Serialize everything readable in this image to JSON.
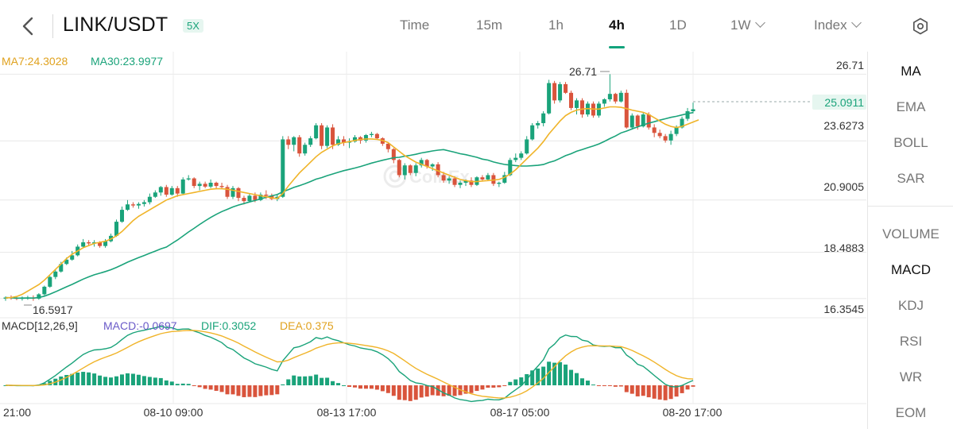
{
  "header": {
    "pair": "LINK/USDT",
    "leverage": "5X",
    "timeframes": [
      {
        "label": "Time",
        "active": false
      },
      {
        "label": "15m",
        "active": false
      },
      {
        "label": "1h",
        "active": false
      },
      {
        "label": "4h",
        "active": true
      },
      {
        "label": "1D",
        "active": false
      },
      {
        "label": "1W",
        "active": false,
        "dropdown": true
      },
      {
        "label": "Index",
        "active": false,
        "dropdown": true
      }
    ],
    "icons": {
      "back": "chevron-left-icon",
      "settings": "hexagon-settings-icon"
    }
  },
  "legend": {
    "ma7": "MA7:24.3028",
    "ma30": "MA30:23.9977",
    "macd_params": "MACD[12,26,9]",
    "macd": "MACD:-0.0697",
    "dif": "DIF:0.3052",
    "dea": "DEA:0.375"
  },
  "colors": {
    "up": "#1aa37a",
    "down": "#d9543c",
    "ma7": "#f0b429",
    "ma30": "#1aa37a",
    "macd_label": "#6a5ac8",
    "current_price_bg": "#e6f6f0"
  },
  "price_axis": [
    "26.71",
    "23.6273",
    "20.9005",
    "18.4883",
    "16.3545"
  ],
  "current_price": "25.0911",
  "annotations": {
    "high": "26.71",
    "low": "16.5917"
  },
  "time_axis": [
    "21:00",
    "08-10 09:00",
    "08-13 17:00",
    "08-17 05:00",
    "08-20 17:00"
  ],
  "watermark": "CoinEx",
  "indicators": {
    "main": [
      {
        "label": "MA",
        "active": true
      },
      {
        "label": "EMA",
        "active": false
      },
      {
        "label": "BOLL",
        "active": false
      },
      {
        "label": "SAR",
        "active": false
      }
    ],
    "sub": [
      {
        "label": "VOLUME",
        "active": false
      },
      {
        "label": "MACD",
        "active": true
      },
      {
        "label": "KDJ",
        "active": false
      },
      {
        "label": "RSI",
        "active": false
      },
      {
        "label": "WR",
        "active": false
      },
      {
        "label": "EOM",
        "active": false
      }
    ]
  },
  "chart_data": {
    "type": "candlestick",
    "price_range": [
      15.65,
      27.75
    ],
    "candles": [
      [
        16.35,
        16.45,
        16.25,
        16.4
      ],
      [
        16.4,
        16.5,
        16.3,
        16.38
      ],
      [
        16.38,
        16.45,
        16.28,
        16.34
      ],
      [
        16.34,
        16.45,
        16.26,
        16.38
      ],
      [
        16.38,
        16.48,
        16.3,
        16.4
      ],
      [
        16.4,
        16.5,
        16.25,
        16.35
      ],
      [
        16.35,
        16.6,
        16.3,
        16.55
      ],
      [
        16.55,
        16.95,
        16.5,
        16.9
      ],
      [
        16.9,
        17.4,
        16.85,
        17.35
      ],
      [
        17.35,
        17.7,
        17.25,
        17.6
      ],
      [
        17.6,
        18.05,
        17.55,
        17.95
      ],
      [
        17.95,
        18.25,
        17.9,
        18.15
      ],
      [
        18.15,
        18.55,
        18.1,
        18.35
      ],
      [
        18.35,
        18.85,
        18.3,
        18.75
      ],
      [
        18.75,
        19.1,
        18.7,
        18.95
      ],
      [
        18.95,
        19.05,
        18.8,
        18.9
      ],
      [
        18.9,
        19.05,
        18.75,
        18.95
      ],
      [
        18.95,
        19.0,
        18.7,
        18.78
      ],
      [
        18.78,
        19.1,
        18.7,
        19.0
      ],
      [
        19.0,
        19.35,
        18.95,
        19.25
      ],
      [
        19.25,
        20.0,
        19.2,
        19.9
      ],
      [
        19.9,
        20.6,
        19.85,
        20.45
      ],
      [
        20.45,
        20.9,
        20.4,
        20.7
      ],
      [
        20.7,
        20.8,
        20.55,
        20.65
      ],
      [
        20.65,
        20.8,
        20.5,
        20.72
      ],
      [
        20.72,
        20.9,
        20.6,
        20.8
      ],
      [
        20.8,
        21.2,
        20.7,
        21.05
      ],
      [
        21.05,
        21.35,
        21.0,
        21.25
      ],
      [
        21.25,
        21.55,
        21.1,
        21.5
      ],
      [
        21.5,
        21.6,
        21.05,
        21.15
      ],
      [
        21.15,
        21.55,
        21.1,
        21.45
      ],
      [
        21.45,
        21.55,
        21.05,
        21.2
      ],
      [
        21.2,
        21.95,
        21.15,
        21.85
      ],
      [
        21.85,
        22.05,
        21.8,
        21.9
      ],
      [
        21.9,
        21.95,
        21.45,
        21.55
      ],
      [
        21.55,
        21.75,
        21.35,
        21.65
      ],
      [
        21.65,
        21.75,
        21.45,
        21.52
      ],
      [
        21.52,
        21.85,
        21.45,
        21.7
      ],
      [
        21.7,
        21.75,
        21.4,
        21.55
      ],
      [
        21.55,
        21.7,
        21.4,
        21.5
      ],
      [
        21.5,
        21.6,
        20.95,
        21.05
      ],
      [
        21.05,
        21.55,
        20.95,
        21.45
      ],
      [
        21.45,
        21.5,
        20.85,
        21.0
      ],
      [
        21.0,
        21.1,
        20.7,
        20.85
      ],
      [
        20.85,
        21.2,
        20.8,
        21.1
      ],
      [
        21.1,
        21.25,
        20.8,
        20.9
      ],
      [
        20.9,
        21.25,
        20.85,
        21.15
      ],
      [
        21.15,
        21.35,
        20.95,
        21.1
      ],
      [
        21.1,
        21.2,
        20.9,
        20.95
      ],
      [
        20.95,
        21.15,
        20.85,
        21.05
      ],
      [
        21.05,
        23.85,
        21.0,
        23.7
      ],
      [
        23.7,
        23.85,
        23.25,
        23.45
      ],
      [
        23.45,
        23.85,
        23.15,
        23.8
      ],
      [
        23.8,
        23.9,
        22.9,
        23.05
      ],
      [
        23.05,
        23.55,
        22.95,
        23.45
      ],
      [
        23.45,
        23.85,
        23.35,
        23.75
      ],
      [
        23.75,
        24.45,
        23.7,
        24.35
      ],
      [
        24.35,
        24.45,
        23.25,
        23.4
      ],
      [
        23.4,
        24.35,
        23.3,
        24.25
      ],
      [
        24.25,
        24.4,
        23.25,
        23.45
      ],
      [
        23.45,
        23.85,
        23.4,
        23.7
      ],
      [
        23.7,
        23.85,
        23.4,
        23.55
      ],
      [
        23.55,
        23.75,
        23.3,
        23.6
      ],
      [
        23.6,
        23.9,
        23.55,
        23.8
      ],
      [
        23.8,
        23.85,
        23.5,
        23.65
      ],
      [
        23.65,
        23.95,
        23.55,
        23.9
      ],
      [
        23.9,
        24.05,
        23.8,
        23.95
      ],
      [
        23.95,
        24.0,
        23.7,
        23.75
      ],
      [
        23.75,
        23.8,
        23.4,
        23.5
      ],
      [
        23.5,
        23.55,
        23.1,
        23.25
      ],
      [
        23.25,
        23.3,
        22.6,
        22.75
      ],
      [
        22.75,
        22.8,
        21.95,
        22.05
      ],
      [
        22.05,
        22.6,
        21.85,
        22.5
      ],
      [
        22.5,
        22.55,
        22.05,
        22.15
      ],
      [
        22.15,
        22.6,
        22.0,
        22.5
      ],
      [
        22.5,
        22.85,
        22.4,
        22.75
      ],
      [
        22.75,
        22.8,
        22.35,
        22.45
      ],
      [
        22.45,
        22.6,
        22.25,
        22.55
      ],
      [
        22.55,
        22.65,
        21.95,
        22.05
      ],
      [
        22.05,
        22.2,
        21.7,
        21.8
      ],
      [
        21.8,
        22.0,
        21.65,
        21.9
      ],
      [
        21.9,
        22.0,
        21.5,
        21.6
      ],
      [
        21.6,
        21.8,
        21.45,
        21.7
      ],
      [
        21.7,
        21.85,
        21.55,
        21.8
      ],
      [
        21.8,
        21.95,
        21.5,
        21.6
      ],
      [
        21.6,
        22.0,
        21.55,
        21.95
      ],
      [
        21.95,
        22.05,
        21.75,
        21.85
      ],
      [
        21.85,
        22.15,
        21.8,
        22.05
      ],
      [
        22.05,
        22.15,
        21.55,
        21.65
      ],
      [
        21.65,
        21.75,
        21.5,
        21.7
      ],
      [
        21.7,
        22.2,
        21.65,
        22.05
      ],
      [
        22.05,
        22.85,
        22.0,
        22.75
      ],
      [
        22.75,
        23.05,
        22.65,
        22.85
      ],
      [
        22.85,
        23.15,
        22.75,
        23.05
      ],
      [
        23.05,
        23.85,
        23.0,
        23.7
      ],
      [
        23.7,
        24.45,
        23.65,
        24.35
      ],
      [
        24.35,
        24.55,
        24.2,
        24.45
      ],
      [
        24.45,
        25.0,
        24.3,
        24.9
      ],
      [
        24.9,
        26.45,
        24.85,
        26.3
      ],
      [
        26.3,
        26.4,
        25.35,
        25.5
      ],
      [
        25.5,
        26.35,
        25.4,
        26.25
      ],
      [
        26.25,
        26.35,
        25.8,
        25.85
      ],
      [
        25.85,
        25.95,
        25.05,
        25.15
      ],
      [
        25.15,
        25.6,
        24.85,
        25.5
      ],
      [
        25.5,
        25.6,
        24.7,
        24.85
      ],
      [
        24.85,
        25.45,
        24.75,
        25.35
      ],
      [
        25.35,
        25.45,
        24.7,
        24.8
      ],
      [
        24.8,
        25.45,
        24.7,
        25.35
      ],
      [
        25.35,
        25.6,
        25.2,
        25.55
      ],
      [
        25.55,
        26.71,
        25.45,
        25.8
      ],
      [
        25.8,
        25.85,
        25.35,
        25.45
      ],
      [
        25.45,
        25.95,
        25.4,
        25.85
      ],
      [
        25.85,
        26.0,
        24.2,
        24.25
      ],
      [
        24.25,
        24.9,
        24.15,
        24.8
      ],
      [
        24.8,
        24.85,
        24.15,
        24.3
      ],
      [
        24.3,
        24.95,
        24.25,
        24.85
      ],
      [
        24.85,
        24.95,
        24.15,
        24.25
      ],
      [
        24.25,
        24.4,
        23.8,
        24.0
      ],
      [
        24.0,
        24.15,
        23.75,
        23.85
      ],
      [
        23.85,
        23.95,
        23.55,
        23.65
      ],
      [
        23.65,
        24.1,
        23.45,
        23.95
      ],
      [
        23.95,
        24.35,
        23.85,
        24.25
      ],
      [
        24.25,
        24.75,
        24.2,
        24.65
      ],
      [
        24.65,
        25.15,
        24.55,
        25.0
      ],
      [
        25.0,
        25.4,
        24.9,
        25.0911
      ]
    ],
    "ma7": [
      16.38,
      16.4,
      16.45,
      16.55,
      16.7,
      16.85,
      17.0,
      17.2,
      17.45,
      17.7,
      17.95,
      18.2,
      18.4,
      18.55,
      18.7,
      18.8,
      18.9,
      18.95,
      19.0,
      19.1,
      19.25,
      19.45,
      19.7,
      19.95,
      20.15,
      20.3,
      20.45,
      20.6,
      20.75,
      20.9,
      21.0,
      21.1,
      21.15,
      21.2,
      21.25,
      21.3,
      21.35,
      21.4,
      21.42,
      21.42,
      21.4,
      21.35,
      21.3,
      21.25,
      21.2,
      21.15,
      21.1,
      21.05,
      21.0,
      20.97,
      21.2,
      21.55,
      21.85,
      22.15,
      22.4,
      22.65,
      22.9,
      23.1,
      23.25,
      23.4,
      23.5,
      23.55,
      23.6,
      23.65,
      23.7,
      23.72,
      23.72,
      23.7,
      23.65,
      23.55,
      23.35,
      23.15,
      22.95,
      22.8,
      22.65,
      22.55,
      22.45,
      22.35,
      22.25,
      22.15,
      22.05,
      21.95,
      21.85,
      21.8,
      21.75,
      21.75,
      21.78,
      21.8,
      21.82,
      21.85,
      21.95,
      22.1,
      22.3,
      22.55,
      22.8,
      23.05,
      23.3,
      23.6,
      23.95,
      24.25,
      24.55,
      24.8,
      24.95,
      25.05,
      25.1,
      25.12,
      25.1,
      25.1,
      25.15,
      25.2,
      25.2,
      25.18,
      25.12,
      25.05,
      25.0,
      24.95,
      24.85,
      24.7,
      24.55,
      24.4,
      24.3,
      24.25,
      24.3,
      24.4,
      24.5,
      24.6
    ]
  }
}
